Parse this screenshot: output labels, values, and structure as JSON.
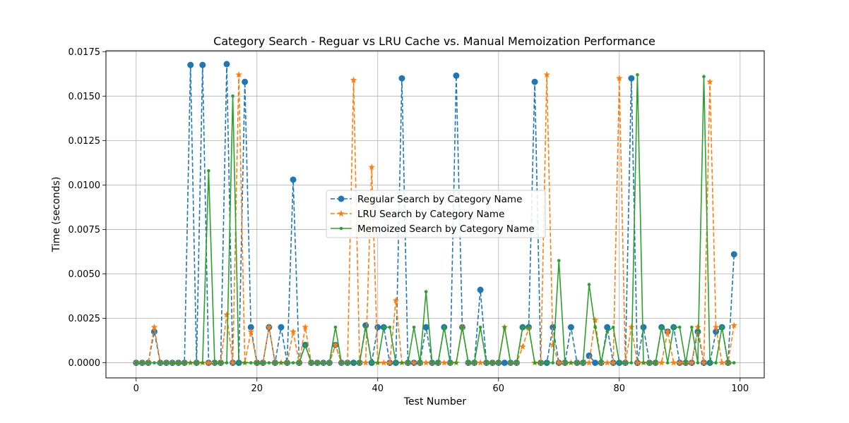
{
  "chart_data": {
    "type": "line",
    "title": "Category Search - Reguar vs LRU Cache vs. Manual Memoization Performance",
    "xlabel": "Test Number",
    "ylabel": "Time (seconds)",
    "xlim": [
      -5,
      104
    ],
    "ylim": [
      -0.00085,
      0.01755
    ],
    "xticks": [
      "0",
      "20",
      "40",
      "60",
      "80",
      "100"
    ],
    "yticks": [
      "0.0000",
      "0.0025",
      "0.0050",
      "0.0075",
      "0.0100",
      "0.0125",
      "0.0150",
      "0.0175"
    ],
    "grid": true,
    "legend_position": "center",
    "x": [
      0,
      1,
      2,
      3,
      4,
      5,
      6,
      7,
      8,
      9,
      10,
      11,
      12,
      13,
      14,
      15,
      16,
      17,
      18,
      19,
      20,
      21,
      22,
      23,
      24,
      25,
      26,
      27,
      28,
      29,
      30,
      31,
      32,
      33,
      34,
      35,
      36,
      37,
      38,
      39,
      40,
      41,
      42,
      43,
      44,
      45,
      46,
      47,
      48,
      49,
      50,
      51,
      52,
      53,
      54,
      55,
      56,
      57,
      58,
      59,
      60,
      61,
      62,
      63,
      64,
      65,
      66,
      67,
      68,
      69,
      70,
      71,
      72,
      73,
      74,
      75,
      76,
      77,
      78,
      79,
      80,
      81,
      82,
      83,
      84,
      85,
      86,
      87,
      88,
      89,
      90,
      91,
      92,
      93,
      94,
      95,
      96,
      97,
      98,
      99
    ],
    "series": [
      {
        "name": "Regular Search by Category Name",
        "color": "#1f77b4",
        "style": "dashed",
        "marker": "circle",
        "values": [
          0,
          0,
          0,
          0.00175,
          0,
          0,
          0,
          0,
          0,
          0.01675,
          0,
          0.01675,
          0,
          0,
          0,
          0.0168,
          0,
          0,
          0.0158,
          0.002,
          0,
          0,
          0.002,
          0,
          0.002,
          0,
          0.0103,
          0,
          0.001,
          0,
          0,
          0,
          0,
          0.001,
          0,
          0,
          0,
          0,
          0.0021,
          0,
          0.002,
          0.002,
          0,
          0,
          0.016,
          0,
          0,
          0,
          0.002,
          0,
          0,
          0.002,
          0,
          0.01615,
          0.002,
          0,
          0,
          0.0041,
          0,
          0,
          0,
          0,
          0,
          0,
          0.002,
          0.002,
          0.0158,
          0,
          0,
          0.002,
          0,
          0,
          0.002,
          0,
          0,
          0.0004,
          0,
          0,
          0.002,
          0,
          0,
          0,
          0.016,
          0,
          0.002,
          0,
          0,
          0.002,
          0.00175,
          0.002,
          0,
          0,
          0,
          0.00175,
          0,
          0,
          0.00175,
          0.002,
          0,
          0.0061
        ]
      },
      {
        "name": "LRU Search by Category Name",
        "color": "#ff7f0e",
        "style": "dashed",
        "marker": "star",
        "values": [
          0,
          0,
          0,
          0.002,
          0,
          0,
          0,
          0,
          0,
          0,
          0,
          0,
          0,
          0,
          0,
          0.0027,
          0,
          0.0162,
          0,
          0.00175,
          0,
          0,
          0.002,
          0,
          0,
          0,
          0.00175,
          0,
          0.002,
          0,
          0,
          0,
          0,
          0.001,
          0,
          0,
          0.0159,
          0,
          0,
          0.011,
          0,
          0,
          0,
          0.0035,
          0,
          0,
          0,
          0,
          0,
          0,
          0,
          0,
          0,
          0,
          0.002,
          0,
          0,
          0,
          0,
          0,
          0,
          0.002,
          0,
          0,
          0.0009,
          0.00195,
          0,
          0,
          0.0162,
          0.001,
          0,
          0,
          0,
          0,
          0,
          0,
          0.0024,
          0,
          0,
          0,
          0.016,
          0,
          0.002,
          0,
          0,
          0,
          0,
          0,
          0.00175,
          0,
          0,
          0,
          0,
          0.002,
          0,
          0.0158,
          0.002,
          0,
          0,
          0.0021
        ]
      },
      {
        "name": "Memoized Search by Category Name",
        "color": "#2ca02c",
        "style": "solid",
        "marker": "point",
        "values": [
          0,
          0,
          0,
          0,
          0,
          0,
          0,
          0,
          0,
          0,
          0,
          0,
          0.0108,
          0,
          0,
          0,
          0.015,
          0,
          0,
          0,
          0,
          0,
          0,
          0,
          0,
          0,
          0,
          0,
          0.001,
          0,
          0,
          0,
          0,
          0.002,
          0,
          0,
          0,
          0,
          0.002,
          0,
          0,
          0.002,
          0.002,
          0,
          0,
          0,
          0.002,
          0,
          0.004,
          0,
          0,
          0.002,
          0,
          0,
          0.002,
          0,
          0,
          0.002,
          0,
          0,
          0,
          0.002,
          0,
          0,
          0.002,
          0.002,
          0,
          0,
          0,
          0,
          0.00575,
          0,
          0,
          0,
          0,
          0.0044,
          0.002,
          0,
          0.00175,
          0.002,
          0,
          0,
          0,
          0.0162,
          0,
          0,
          0,
          0.002,
          0,
          0.002,
          0.002,
          0,
          0.002,
          0,
          0.0161,
          0,
          0,
          0.002,
          0,
          0
        ]
      }
    ]
  }
}
